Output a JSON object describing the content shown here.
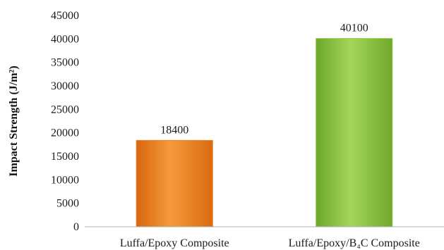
{
  "chart_data": {
    "type": "bar",
    "title": "",
    "xlabel": "",
    "ylabel": "Impact Strength (J/m²)",
    "categories": [
      "Luffa/Epoxy Composite",
      "Luffa/Epoxy/B₄C Composite"
    ],
    "values": [
      18400,
      40100
    ],
    "data_labels": [
      "18400",
      "40100"
    ],
    "ylim": [
      0,
      45000
    ],
    "yticks": [
      0,
      5000,
      10000,
      15000,
      20000,
      25000,
      30000,
      35000,
      40000,
      45000
    ],
    "grid": false,
    "legend": "none",
    "bar_colors": [
      "#f07f1c",
      "#8cc63f"
    ]
  }
}
